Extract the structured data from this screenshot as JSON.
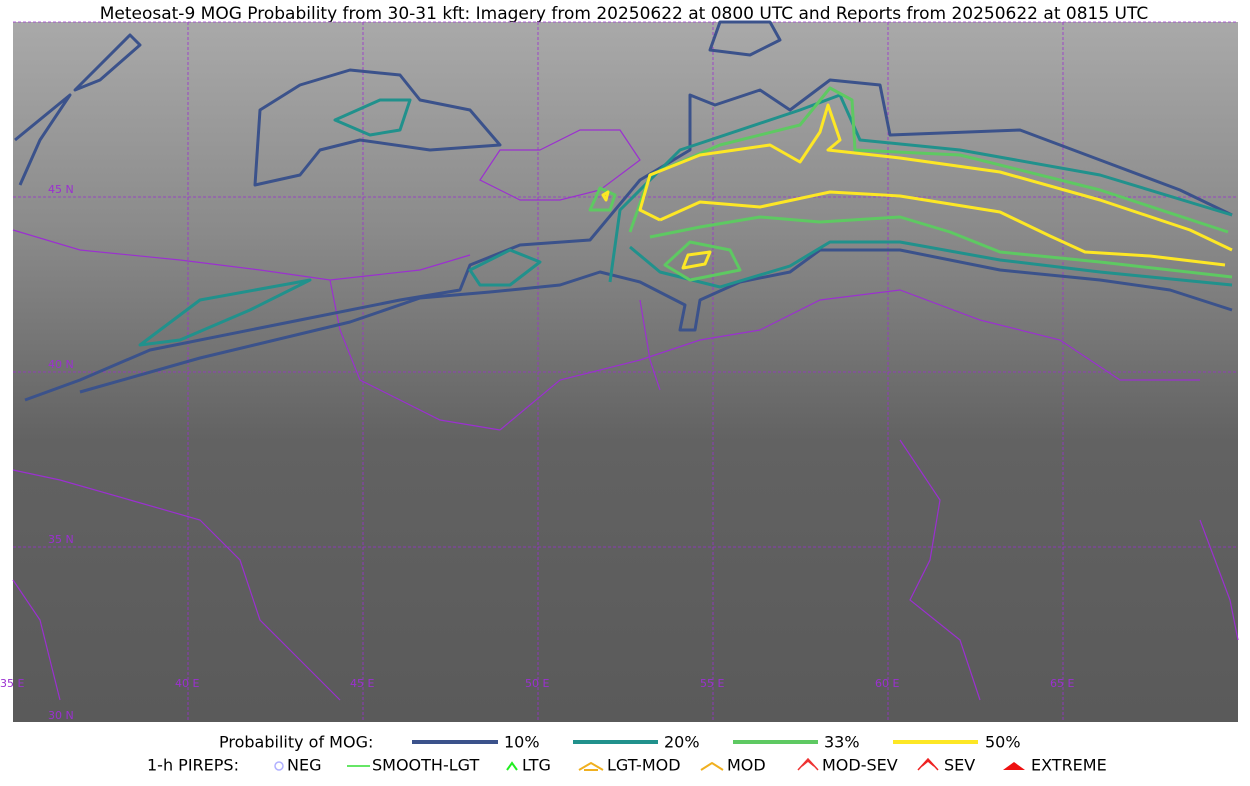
{
  "title": "Meteosat-9 MOG Probability from 30-31 kft: Imagery from 20250622 at 0800 UTC and Reports from 20250622 at 0815 UTC",
  "map": {
    "lat_labels": [
      "45 N",
      "40 N",
      "35 N",
      "30 N"
    ],
    "lon_labels": [
      "35 E",
      "40 E",
      "45 E",
      "50 E",
      "55 E",
      "60 E",
      "65 E"
    ]
  },
  "legend": {
    "probability_title": "Probability of MOG:",
    "probability_levels": [
      "10%",
      "20%",
      "33%",
      "50%"
    ],
    "pireps_title": "1-h PIREPS:",
    "pireps": [
      "NEG",
      "SMOOTH-LGT",
      "LTG",
      "LGT-MOD",
      "MOD",
      "MOD-SEV",
      "SEV",
      "EXTREME"
    ]
  }
}
